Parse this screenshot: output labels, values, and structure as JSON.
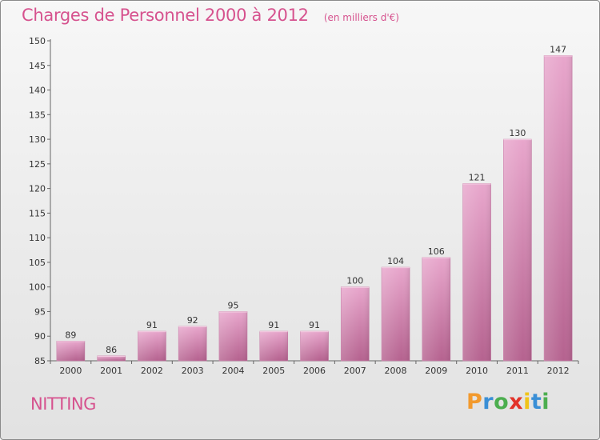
{
  "header": {
    "title": "Charges de Personnel 2000 à 2012",
    "unit": "(en milliers d'€)"
  },
  "commune": "NITTING",
  "logo": {
    "letters": [
      "P",
      "r",
      "o",
      "x",
      "i",
      "t",
      "i"
    ],
    "colors": [
      "#f29a2e",
      "#3a8fd6",
      "#4cae4f",
      "#e2332a",
      "#f0c419",
      "#3a8fd6",
      "#4cae4f"
    ]
  },
  "colors": {
    "bar_light": "#e8a6cc",
    "bar_dark": "#b5628f",
    "title": "#d6528e"
  },
  "chart_data": {
    "type": "bar",
    "title": "Charges de Personnel 2000 à 2012",
    "subtitle": "(en milliers d'€)",
    "categories": [
      "2000",
      "2001",
      "2002",
      "2003",
      "2004",
      "2005",
      "2006",
      "2007",
      "2008",
      "2009",
      "2010",
      "2011",
      "2012"
    ],
    "values": [
      89,
      86,
      91,
      92,
      95,
      91,
      91,
      100,
      104,
      106,
      121,
      130,
      147
    ],
    "ylim": [
      85,
      150
    ],
    "yticks": [
      85,
      90,
      95,
      100,
      105,
      110,
      115,
      120,
      125,
      130,
      135,
      140,
      145,
      150
    ],
    "xlabel": "",
    "ylabel": "",
    "grid": false,
    "data_labels": true
  }
}
